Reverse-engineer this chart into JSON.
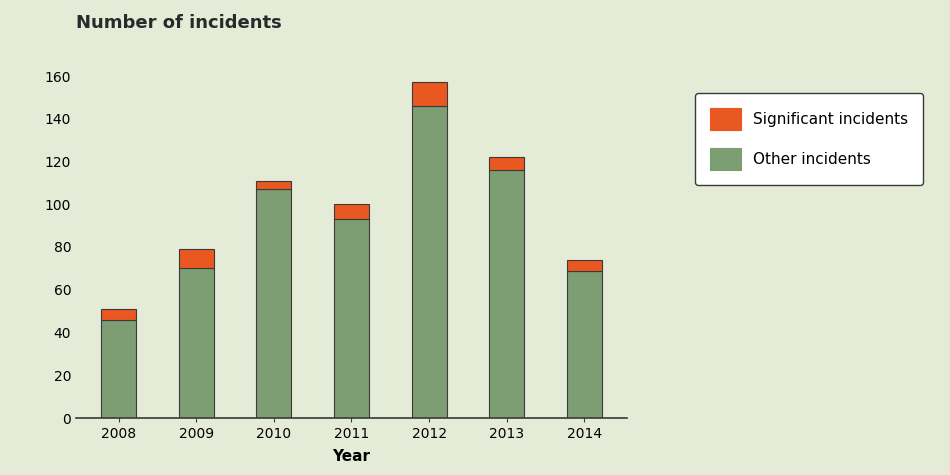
{
  "years": [
    "2008",
    "2009",
    "2010",
    "2011",
    "2012",
    "2013",
    "2014"
  ],
  "other_incidents": [
    46,
    70,
    107,
    93,
    146,
    116,
    69
  ],
  "significant_incidents": [
    5,
    9,
    4,
    7,
    11,
    6,
    5
  ],
  "other_color": "#7d9e72",
  "significant_color": "#e85820",
  "background_color": "#e4ecd8",
  "bar_edge_color": "#3a3a3a",
  "title": "Number of incidents",
  "xlabel": "Year",
  "ylim": [
    0,
    160
  ],
  "yticks": [
    0,
    20,
    40,
    60,
    80,
    100,
    120,
    140,
    160
  ],
  "legend_sig": "Significant incidents",
  "legend_other": "Other incidents",
  "title_fontsize": 13,
  "axis_label_fontsize": 11,
  "tick_fontsize": 10,
  "legend_fontsize": 11,
  "bar_width": 0.45
}
